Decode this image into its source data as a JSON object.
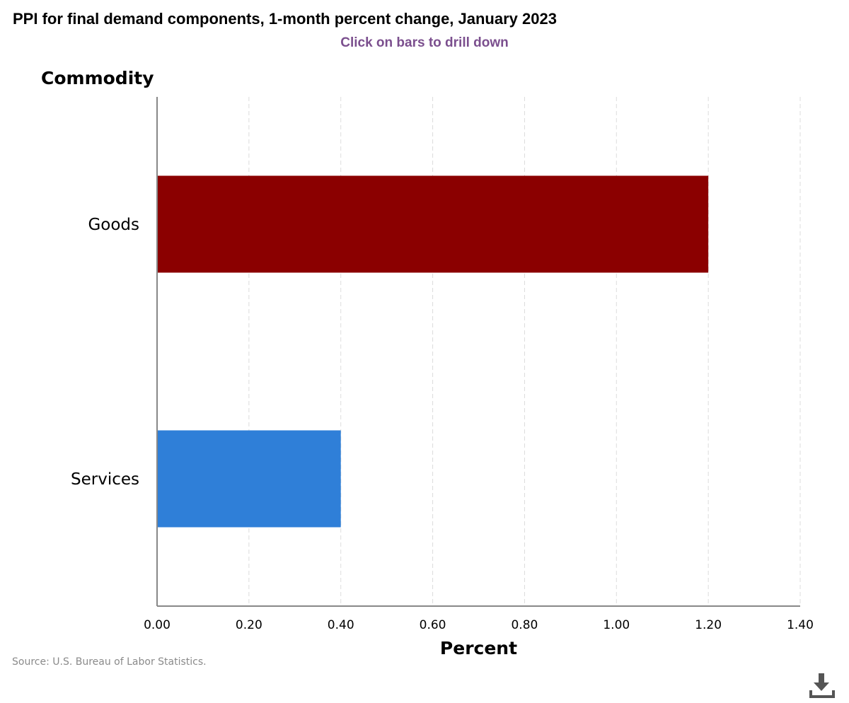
{
  "chart_data": {
    "type": "bar",
    "orientation": "horizontal",
    "title": "PPI for final demand components, 1-month percent change, January 2023",
    "subtitle": "Click on bars to drill down",
    "xlabel": "Percent",
    "ylabel": "Commodity",
    "categories": [
      "Goods",
      "Services"
    ],
    "values": [
      1.2,
      0.4
    ],
    "colors": [
      "#8b0000",
      "#2f7fd8"
    ],
    "xlim": [
      0,
      1.4
    ],
    "xticks": [
      "0.00",
      "0.20",
      "0.40",
      "0.60",
      "0.80",
      "1.00",
      "1.20",
      "1.40"
    ],
    "grid": true
  },
  "source": "Source: U.S. Bureau of Labor Statistics.",
  "download_icon": "download-icon"
}
